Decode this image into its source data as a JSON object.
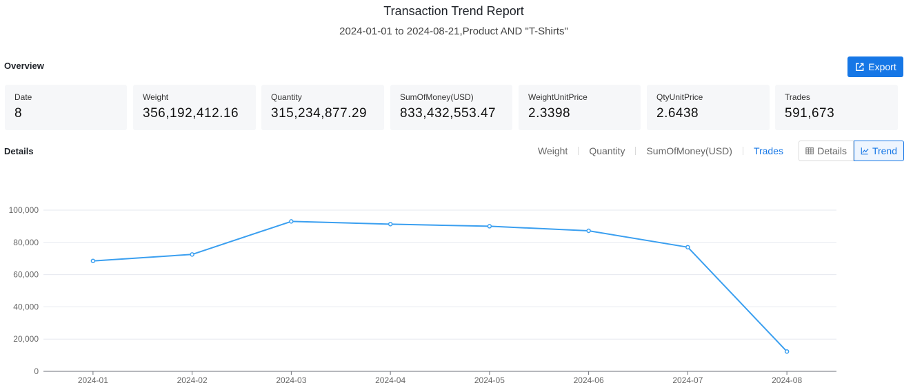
{
  "report": {
    "title": "Transaction Trend Report",
    "subtitle": "2024-01-01 to 2024-08-21,Product AND \"T-Shirts\""
  },
  "overview": {
    "label": "Overview",
    "export_label": "Export",
    "cards": [
      {
        "label": "Date",
        "value": "8"
      },
      {
        "label": "Weight",
        "value": "356,192,412.16"
      },
      {
        "label": "Quantity",
        "value": "315,234,877.29"
      },
      {
        "label": "SumOfMoney(USD)",
        "value": "833,432,553.47"
      },
      {
        "label": "WeightUnitPrice",
        "value": "2.3398"
      },
      {
        "label": "QtyUnitPrice",
        "value": "2.6438"
      },
      {
        "label": "Trades",
        "value": "591,673"
      }
    ]
  },
  "details": {
    "label": "Details",
    "metric_tabs": [
      {
        "label": "Weight",
        "active": false
      },
      {
        "label": "Quantity",
        "active": false
      },
      {
        "label": "SumOfMoney(USD)",
        "active": false
      },
      {
        "label": "Trades",
        "active": true
      }
    ],
    "view_details_label": "Details",
    "view_trend_label": "Trend",
    "active_view": "Trend"
  },
  "colors": {
    "accent": "#1677e6",
    "line": "#3a9ff0",
    "grid": "#e6e8ef"
  },
  "chart_data": {
    "type": "line",
    "x": [
      "2024-01",
      "2024-02",
      "2024-03",
      "2024-04",
      "2024-05",
      "2024-06",
      "2024-07",
      "2024-08"
    ],
    "series": [
      {
        "values": [
          68500,
          72500,
          93000,
          91300,
          90000,
          87200,
          77000,
          12300
        ]
      }
    ],
    "y_ticks": [
      "0",
      "20,000",
      "40,000",
      "60,000",
      "80,000",
      "100,000"
    ],
    "ylim": [
      0,
      100000
    ],
    "grid": true
  }
}
